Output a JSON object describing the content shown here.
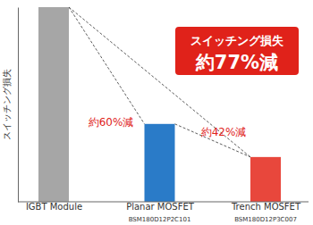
{
  "chart_data": {
    "type": "bar",
    "y_label": "スイッチング損失",
    "categories": [
      "IGBT Module",
      "Planar MOSFET",
      "Trench MOSFET"
    ],
    "sublabels": [
      null,
      "BSM180D12P2C101",
      "BSM180D12P3C007"
    ],
    "values": [
      100,
      40,
      23
    ],
    "colors": [
      "#a6a6a6",
      "#2a7bc8",
      "#e8473c"
    ],
    "ylim": [
      0,
      100
    ],
    "tick_labels": false,
    "grid": false,
    "annotations": [
      "スイッチング損失",
      "約77%減",
      "約60%減",
      "約42%減"
    ]
  }
}
